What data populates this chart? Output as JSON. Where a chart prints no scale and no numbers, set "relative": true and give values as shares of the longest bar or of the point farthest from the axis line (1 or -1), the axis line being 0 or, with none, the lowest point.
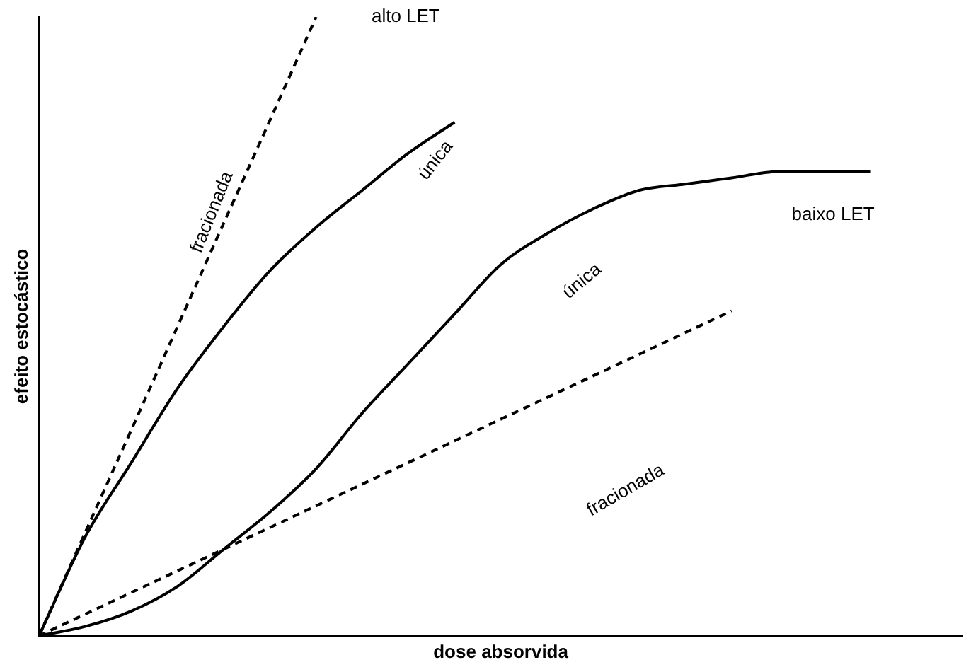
{
  "chart_data": {
    "type": "line",
    "relative": true,
    "xlabel": "dose absorvida",
    "ylabel": "efeito estocástico",
    "categories": [
      null,
      null,
      null,
      null,
      null,
      null,
      null,
      null,
      null,
      null,
      null,
      null,
      null,
      null,
      null,
      null,
      null,
      null,
      null,
      null,
      null
    ],
    "series": [
      {
        "color": "#000000",
        "line_style": "dashed",
        "values": [
          0,
          0.167,
          0.333,
          0.5,
          0.667,
          0.833,
          1,
          null,
          null,
          null,
          null,
          null,
          null,
          null,
          null,
          null,
          null,
          null,
          null,
          null,
          null
        ]
      },
      {
        "color": "#000000",
        "line_style": "solid",
        "values": [
          0,
          0.16,
          0.28,
          0.4,
          0.5,
          0.59,
          0.66,
          0.72,
          0.78,
          0.83,
          null,
          null,
          null,
          null,
          null,
          null,
          null,
          null,
          null,
          null,
          null
        ]
      },
      {
        "color": "#000000",
        "line_style": "solid",
        "values": [
          0,
          0.015,
          0.04,
          0.08,
          0.14,
          0.2,
          0.27,
          0.36,
          0.44,
          0.52,
          0.6,
          0.65,
          0.69,
          0.72,
          0.73,
          0.74,
          0.75,
          0.75,
          0.75,
          null,
          null
        ]
      },
      {
        "color": "#000000",
        "line_style": "dashed",
        "values": [
          0,
          0.035,
          0.07,
          0.105,
          0.14,
          0.175,
          0.21,
          0.245,
          0.28,
          0.315,
          0.35,
          0.385,
          0.42,
          0.455,
          0.49,
          0.525,
          null,
          null,
          null,
          null,
          null
        ]
      }
    ],
    "annotations": [
      "alto LET",
      "fracionada",
      "única",
      "única",
      "baixo LET",
      "fracionada"
    ],
    "legend": false,
    "grid": false,
    "marker": "none"
  }
}
